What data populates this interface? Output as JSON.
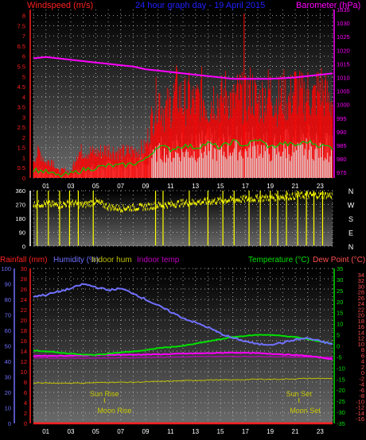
{
  "header": {
    "title": "24 hour graph day - 19 April 2015",
    "left_label": "Windspeed (m/s)",
    "right_label": "Barometer (hPa)"
  },
  "colors": {
    "wind": "#ff0000",
    "gust": "#ff0000",
    "wind_avg": "#00c800",
    "baro": "#ff00ff",
    "direction": "#ffff00",
    "humidity": "#7070ff",
    "indoor_hum": "#c0c000",
    "indoor_temp": "#c000c0",
    "temperature": "#00e000",
    "dew_point": "#ff5050",
    "rain": "#ff2020",
    "title": "#2020ff",
    "grid_dot": "#c8c8c8"
  },
  "chart_data": [
    {
      "type": "line",
      "name": "wind-baro",
      "x_ticks": [
        "01",
        "03",
        "05",
        "07",
        "09",
        "11",
        "13",
        "15",
        "17",
        "19",
        "21",
        "23"
      ],
      "y_left": {
        "label": "Windspeed (m/s)",
        "ticks": [
          "0",
          "0.5",
          "1",
          "1.5",
          "2",
          "2.5",
          "3",
          "3.5",
          "4",
          "4.5",
          "5",
          "5.5",
          "6",
          "6.5",
          "7",
          "7.5",
          "8"
        ],
        "range": [
          0,
          8.3
        ]
      },
      "y_right": {
        "label": "Barometer (hPa)",
        "ticks": [
          "975",
          "980",
          "985",
          "990",
          "995",
          "1000",
          "1005",
          "1010",
          "1015",
          "1020",
          "1025",
          "1030",
          "1035"
        ],
        "range": [
          973,
          1035
        ]
      },
      "wind_gust_envelope": [
        [
          0,
          1.1
        ],
        [
          0.5,
          1.6
        ],
        [
          1,
          0.9
        ],
        [
          1.5,
          1.1
        ],
        [
          2,
          0.4
        ],
        [
          2.5,
          0.5
        ],
        [
          3,
          0.3
        ],
        [
          3.5,
          1.5
        ],
        [
          4,
          1.6
        ],
        [
          5,
          1.5
        ],
        [
          6,
          1.7
        ],
        [
          7,
          1.5
        ],
        [
          8,
          1.6
        ],
        [
          9,
          1.8
        ],
        [
          9.5,
          3.5
        ],
        [
          10,
          5.0
        ],
        [
          10.5,
          4.0
        ],
        [
          11,
          4.3
        ],
        [
          11.5,
          5.2
        ],
        [
          12,
          4.5
        ],
        [
          12.5,
          4.8
        ],
        [
          13,
          4.4
        ],
        [
          13.5,
          5.0
        ],
        [
          14,
          4.2
        ],
        [
          14.5,
          4.9
        ],
        [
          15,
          4.6
        ],
        [
          15.5,
          5.1
        ],
        [
          16,
          4.4
        ],
        [
          16.5,
          5.0
        ],
        [
          17,
          4.6
        ],
        [
          17.5,
          5.3
        ],
        [
          18,
          4.4
        ],
        [
          18.5,
          4.9
        ],
        [
          19,
          5.2
        ],
        [
          19.5,
          4.5
        ],
        [
          20,
          5.0
        ],
        [
          20.5,
          4.6
        ],
        [
          21,
          5.4
        ],
        [
          21.5,
          4.8
        ],
        [
          22,
          5.1
        ],
        [
          22.5,
          4.7
        ],
        [
          23,
          5.5
        ],
        [
          23.5,
          4.8
        ],
        [
          24,
          4.6
        ]
      ],
      "wind_peak_spike": [
        16.9,
        8.1
      ],
      "wind_avg": [
        [
          0,
          0.4
        ],
        [
          1,
          0.3
        ],
        [
          2,
          0.1
        ],
        [
          3,
          0.2
        ],
        [
          4,
          0.4
        ],
        [
          5,
          0.5
        ],
        [
          6,
          0.6
        ],
        [
          7,
          0.6
        ],
        [
          8,
          0.7
        ],
        [
          9,
          0.9
        ],
        [
          10,
          1.6
        ],
        [
          11,
          1.4
        ],
        [
          12,
          1.6
        ],
        [
          13,
          1.5
        ],
        [
          14,
          1.7
        ],
        [
          15,
          1.5
        ],
        [
          16,
          1.8
        ],
        [
          17,
          1.6
        ],
        [
          18,
          1.9
        ],
        [
          19,
          1.5
        ],
        [
          20,
          1.7
        ],
        [
          21,
          1.6
        ],
        [
          22,
          1.8
        ],
        [
          23,
          1.6
        ],
        [
          24,
          1.5
        ]
      ],
      "barometer": [
        [
          0,
          1017
        ],
        [
          1,
          1017.5
        ],
        [
          2,
          1017
        ],
        [
          3,
          1016.5
        ],
        [
          4,
          1016
        ],
        [
          5,
          1015.5
        ],
        [
          6,
          1015
        ],
        [
          7,
          1014.5
        ],
        [
          8,
          1014
        ],
        [
          9,
          1013
        ],
        [
          10,
          1012.5
        ],
        [
          11,
          1012
        ],
        [
          12,
          1011.5
        ],
        [
          13,
          1011
        ],
        [
          14,
          1010.5
        ],
        [
          15,
          1010
        ],
        [
          16,
          1009.5
        ],
        [
          17,
          1009.5
        ],
        [
          18,
          1009.5
        ],
        [
          19,
          1009.5
        ],
        [
          20,
          1009.7
        ],
        [
          21,
          1010
        ],
        [
          22,
          1010.5
        ],
        [
          23,
          1011
        ],
        [
          24,
          1011.5
        ]
      ]
    },
    {
      "type": "line",
      "name": "wind-direction",
      "y_left": {
        "ticks": [
          "0",
          "90",
          "180",
          "270",
          "360"
        ],
        "range": [
          0,
          360
        ]
      },
      "compass": [
        "N",
        "W",
        "S",
        "E",
        "N"
      ],
      "direction": [
        [
          0,
          270
        ],
        [
          1,
          275
        ],
        [
          2,
          265
        ],
        [
          3,
          280
        ],
        [
          4,
          265
        ],
        [
          5,
          290
        ],
        [
          6,
          255
        ],
        [
          7,
          245
        ],
        [
          8,
          250
        ],
        [
          9,
          255
        ],
        [
          10,
          265
        ],
        [
          11,
          270
        ],
        [
          12,
          280
        ],
        [
          13,
          285
        ],
        [
          14,
          290
        ],
        [
          15,
          295
        ],
        [
          16,
          300
        ],
        [
          17,
          305
        ],
        [
          18,
          310
        ],
        [
          19,
          315
        ],
        [
          20,
          320
        ],
        [
          21,
          325
        ],
        [
          22,
          330
        ],
        [
          23,
          330
        ],
        [
          24,
          330
        ]
      ],
      "north_wraps": [
        0.3,
        1.2,
        2.1,
        2.9,
        3.6,
        4.8,
        9.8,
        10.4,
        12.5,
        14.0,
        15.2,
        16.1,
        17.3,
        18.2,
        19.0,
        19.6,
        20.3,
        21.2,
        21.9,
        22.5,
        23.2
      ]
    },
    {
      "type": "line",
      "name": "temp-humidity",
      "header_labels": {
        "rainfall": "Rainfall (mm)",
        "humidity": "Humidity (%)",
        "indoor_hum": "Indoor hum",
        "indoor_temp": "Indoor temp",
        "temperature": "Temperature (°C)",
        "dew_point": "Dew Point (°C)"
      },
      "y_humidity_ticks": [
        "0",
        "10",
        "20",
        "30",
        "40",
        "50",
        "60",
        "70",
        "80",
        "90",
        "100"
      ],
      "y_rain_ticks": [
        "0",
        "2",
        "4",
        "6",
        "8",
        "10",
        "12",
        "14",
        "16",
        "18",
        "20",
        "22",
        "24",
        "26",
        "28",
        "30"
      ],
      "y_temp_ticks": [
        "-35",
        "-30",
        "-25",
        "-20",
        "-15",
        "-10",
        "-5",
        "0",
        "5",
        "10",
        "15",
        "20",
        "25",
        "30",
        "35"
      ],
      "y_dew_ticks": [
        "-16",
        "-14",
        "-12",
        "-10",
        "-8",
        "-6",
        "-4",
        "-2",
        "0",
        "2",
        "4",
        "6",
        "8",
        "10",
        "12",
        "14",
        "16",
        "18",
        "20",
        "22",
        "24",
        "26",
        "28",
        "30",
        "32",
        "34"
      ],
      "humidity_range": [
        0,
        100
      ],
      "temp_range": [
        -35,
        35
      ],
      "humidity": [
        [
          0,
          82
        ],
        [
          1,
          83
        ],
        [
          2,
          85
        ],
        [
          3,
          87
        ],
        [
          4,
          90
        ],
        [
          5,
          88
        ],
        [
          6,
          86
        ],
        [
          7,
          87
        ],
        [
          8,
          84
        ],
        [
          9,
          80
        ],
        [
          10,
          76
        ],
        [
          11,
          72
        ],
        [
          12,
          68
        ],
        [
          13,
          65
        ],
        [
          14,
          62
        ],
        [
          15,
          58
        ],
        [
          16,
          55
        ],
        [
          17,
          53
        ],
        [
          18,
          51
        ],
        [
          19,
          51
        ],
        [
          20,
          52
        ],
        [
          21,
          54
        ],
        [
          22,
          55
        ],
        [
          23,
          53
        ],
        [
          24,
          51
        ]
      ],
      "indoor_humidity": [
        [
          0,
          26
        ],
        [
          2,
          26
        ],
        [
          4,
          26
        ],
        [
          6,
          26.5
        ],
        [
          8,
          26.5
        ],
        [
          10,
          27
        ],
        [
          12,
          27.5
        ],
        [
          14,
          28
        ],
        [
          16,
          28
        ],
        [
          18,
          28.5
        ],
        [
          20,
          28.5
        ],
        [
          22,
          29
        ],
        [
          24,
          29
        ]
      ],
      "temperature": [
        [
          0,
          -2
        ],
        [
          1,
          -2.5
        ],
        [
          2,
          -3
        ],
        [
          3,
          -3.5
        ],
        [
          4,
          -4
        ],
        [
          5,
          -4
        ],
        [
          6,
          -3.5
        ],
        [
          7,
          -3
        ],
        [
          8,
          -2.5
        ],
        [
          9,
          -2
        ],
        [
          10,
          -1
        ],
        [
          11,
          -0.5
        ],
        [
          12,
          0
        ],
        [
          13,
          1
        ],
        [
          14,
          2
        ],
        [
          15,
          3
        ],
        [
          16,
          4
        ],
        [
          17,
          4.5
        ],
        [
          18,
          5
        ],
        [
          19,
          5
        ],
        [
          20,
          4.5
        ],
        [
          21,
          4
        ],
        [
          22,
          3
        ],
        [
          23,
          2
        ],
        [
          24,
          1
        ]
      ],
      "dew_point": [
        [
          0,
          -4.5
        ],
        [
          2,
          -4.5
        ],
        [
          4,
          -4.3
        ],
        [
          6,
          -4
        ],
        [
          8,
          -4
        ],
        [
          10,
          -3.8
        ],
        [
          12,
          -3.5
        ],
        [
          14,
          -3.3
        ],
        [
          16,
          -3
        ],
        [
          18,
          -3.3
        ],
        [
          20,
          -3.8
        ],
        [
          22,
          -4.5
        ],
        [
          24,
          -6
        ]
      ],
      "indoor_temp": [
        [
          0,
          -5.5
        ],
        [
          3,
          -5.5
        ],
        [
          6,
          -5.5
        ],
        [
          9,
          -5.2
        ],
        [
          12,
          -5
        ],
        [
          15,
          -4.8
        ],
        [
          18,
          -4.8
        ],
        [
          21,
          -5
        ],
        [
          24,
          -5.2
        ]
      ],
      "rain": [
        [
          0,
          0
        ],
        [
          24,
          0
        ]
      ],
      "sun_rise_label": "Sun Rise",
      "sun_set_label": "Sun Set",
      "moon_rise_label": "Moon Rise",
      "moon_set_label": "Moon Set",
      "sun_rise_hour": 5.7,
      "sun_set_hour": 21.3,
      "moon_rise_hour": 6.5,
      "moon_set_hour": 21.8
    }
  ]
}
